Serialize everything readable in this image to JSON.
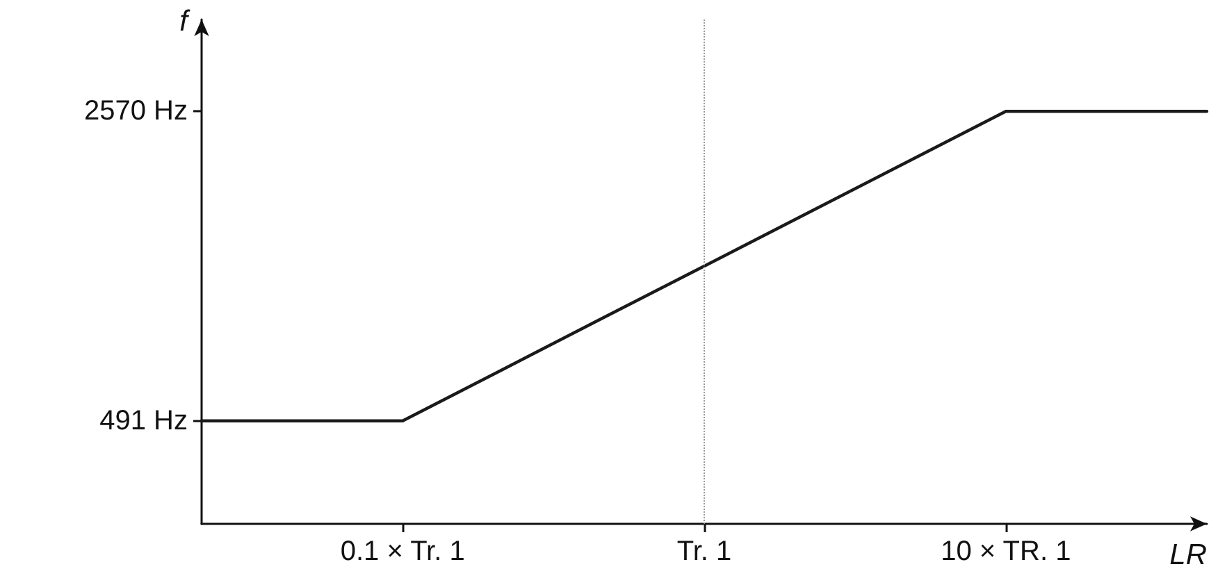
{
  "chart_data": {
    "type": "line",
    "xlabel": "LR",
    "ylabel": "f",
    "log": "y",
    "grid": false,
    "marker": "none",
    "line_style": "solid",
    "categories": [
      null,
      null,
      "0.1 × Tr. 1",
      null,
      null,
      "Tr. 1",
      null,
      null,
      "10 × TR. 1",
      null,
      null
    ],
    "ylim": [
      283,
      4200
    ],
    "yticks": [
      {
        "value": 491,
        "label": "491 Hz"
      },
      {
        "value": 2570,
        "label": "2570 Hz"
      }
    ],
    "series": [
      {
        "color": "#1a1a1a",
        "values": [
          491,
          491,
          491,
          647,
          853,
          1123,
          1480,
          1950,
          2570,
          2570,
          2570
        ]
      }
    ],
    "ref_lines": [
      {
        "axis": "x",
        "value": "Tr. 1",
        "color": "#9a9a9a",
        "line_style": "dotted"
      }
    ]
  }
}
